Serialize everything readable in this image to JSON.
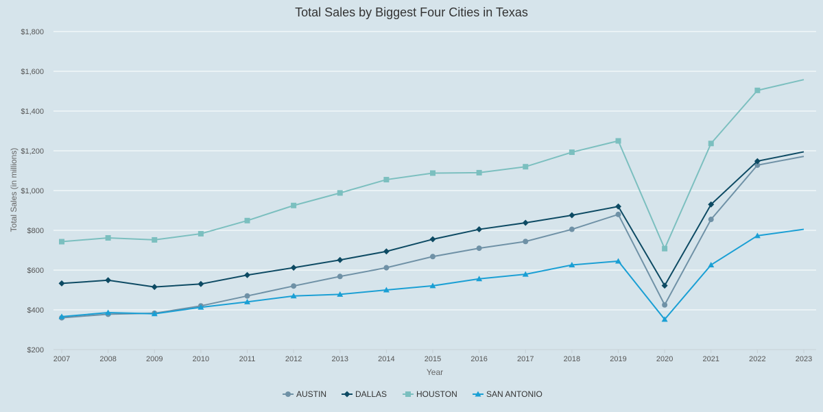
{
  "chart_data": {
    "type": "line",
    "title": "Total Sales by Biggest Four Cities in Texas",
    "xlabel": "Year",
    "ylabel": "Total Sales (in millions)",
    "x": [
      "2007",
      "2008",
      "2009",
      "2010",
      "2011",
      "2012",
      "2013",
      "2014",
      "2015",
      "2016",
      "2017",
      "2018",
      "2019",
      "2020",
      "2021",
      "2022",
      "2023"
    ],
    "ylim": [
      200,
      1800
    ],
    "yticks": [
      200,
      400,
      600,
      800,
      1000,
      1200,
      1400,
      1600,
      1800
    ],
    "ytick_labels": [
      "$200",
      "$400",
      "$600",
      "$800",
      "$1,000",
      "$1,200",
      "$1,400",
      "$1,600",
      "$1,800"
    ],
    "grid": true,
    "legend": "bottom-center",
    "series": [
      {
        "name": "AUSTIN",
        "color": "#6f91a6",
        "marker": "circle",
        "values": [
          360,
          378,
          383,
          420,
          470,
          520,
          568,
          612,
          668,
          710,
          744,
          805,
          880,
          425,
          855,
          1128,
          1172
        ]
      },
      {
        "name": "DALLAS",
        "color": "#0d4a63",
        "marker": "diamond",
        "values": [
          533,
          549,
          515,
          530,
          575,
          612,
          651,
          694,
          755,
          805,
          838,
          876,
          920,
          522,
          930,
          1148,
          1195
        ]
      },
      {
        "name": "HOUSTON",
        "color": "#7bbfbf",
        "marker": "square",
        "values": [
          743,
          762,
          752,
          783,
          849,
          925,
          988,
          1055,
          1088,
          1090,
          1120,
          1193,
          1250,
          708,
          1237,
          1504,
          1558
        ]
      },
      {
        "name": "SAN ANTONIO",
        "color": "#1a9fd4",
        "marker": "triangle",
        "values": [
          366,
          386,
          380,
          413,
          440,
          470,
          478,
          500,
          521,
          556,
          579,
          626,
          645,
          352,
          626,
          773,
          805
        ]
      }
    ]
  }
}
